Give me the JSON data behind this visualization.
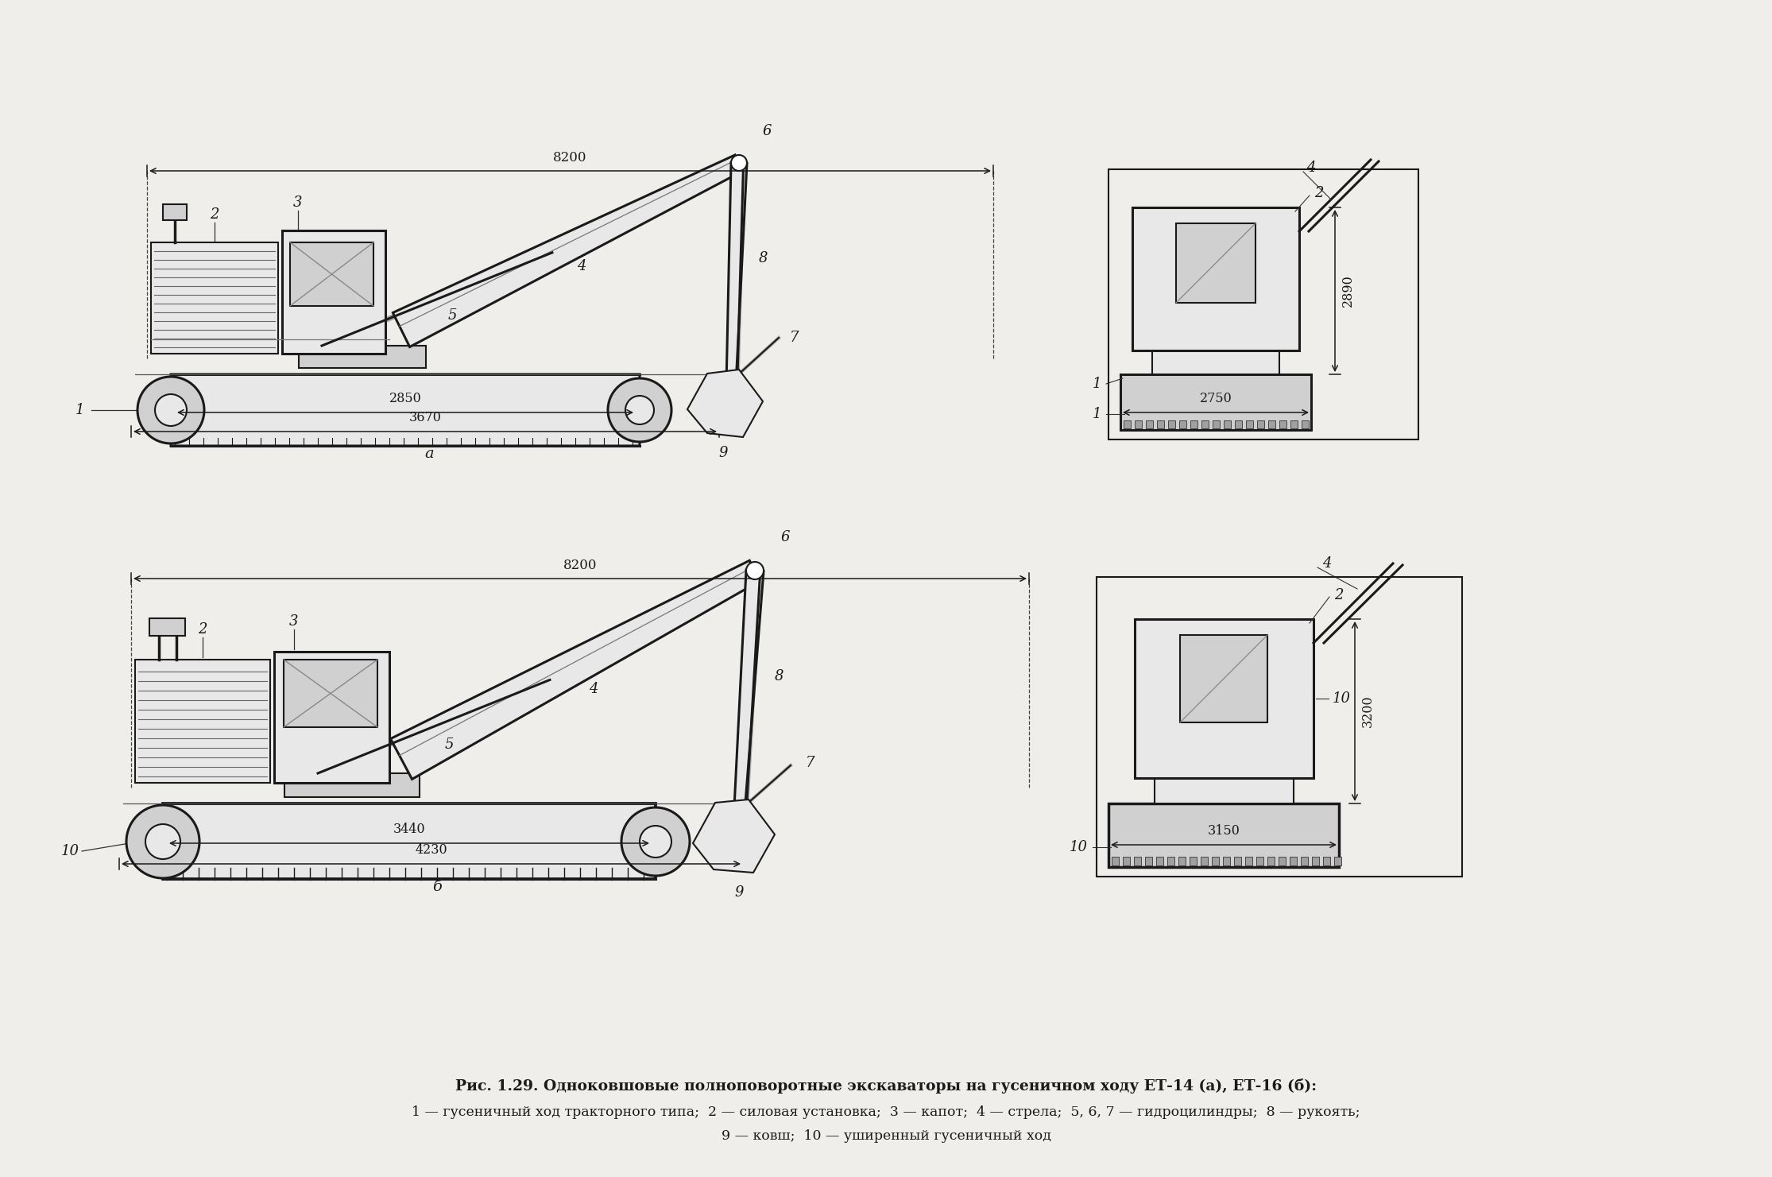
{
  "bg_color": "#f0eeea",
  "line_color": "#1a1a1a",
  "title_bold": "Рис. 1.29. Одноковшовые полноповоротные экскаваторы на гусеничном ходу ЕТ-14 (а), ЕТ-16 (б):",
  "title_line2": "1 — гусеничный ход тракторного типа;  2 — силовая установка;  3 — капот;  4 — стрела;  5, 6, 7 — гидроцилиндры;  8 — рукоять;",
  "title_line3": "9 — ковш;  10 — уширенный гусеничный ход",
  "label_a": "а",
  "label_b": "б",
  "dim_8200": "8200",
  "dim_2850": "2850",
  "dim_3670": "3670",
  "dim_2890": "2890",
  "dim_2750": "2750",
  "dim_3440": "3440",
  "dim_4230": "4230",
  "dim_3200": "3200",
  "dim_3150": "3150",
  "white": "#ffffff",
  "light_gray": "#e8e8e8",
  "mid_gray": "#d0d0d0",
  "dark_gray": "#a0a0a0"
}
